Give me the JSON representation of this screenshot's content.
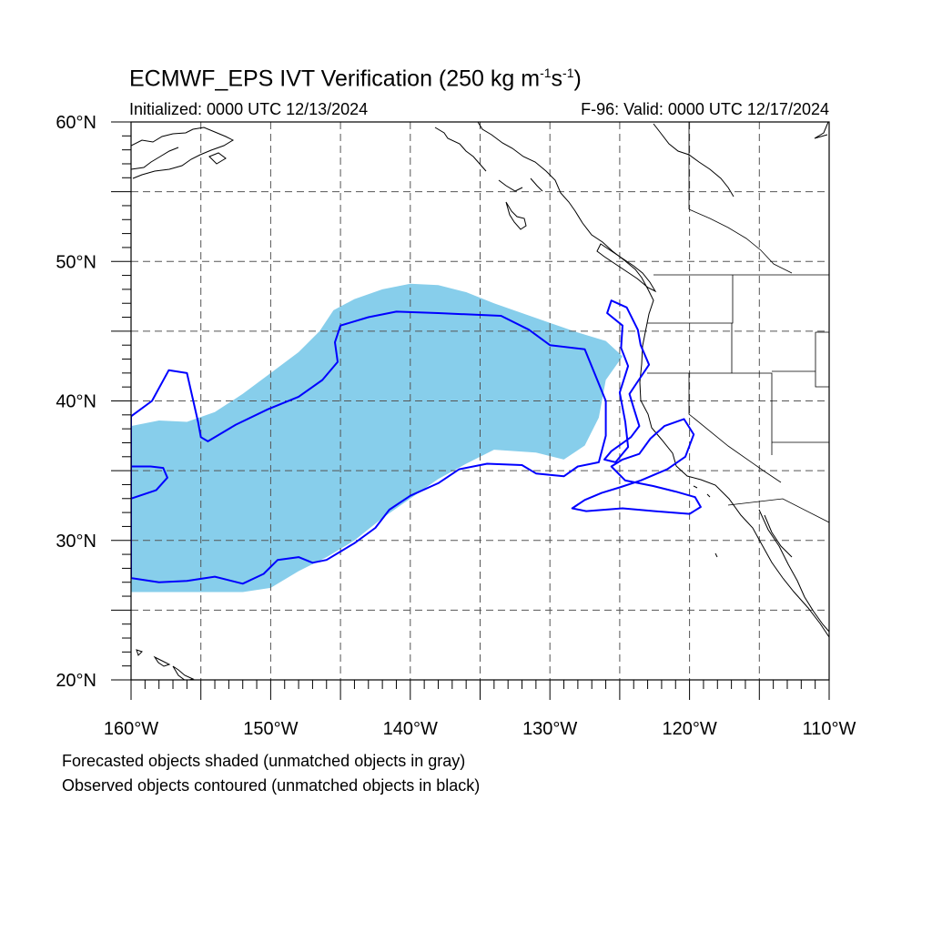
{
  "title_main": "ECMWF_EPS IVT Verification (250 kg m",
  "title_exp1": "-1",
  "title_mid": "s",
  "title_exp2": "-1",
  "title_end": ")",
  "subtitle_left": "Initialized: 0000 UTC 12/13/2024",
  "subtitle_right": "F-96: Valid: 0000 UTC 12/17/2024",
  "caption_lines": [
    "Forecasted objects shaded (unmatched objects in gray)",
    "Observed objects contoured (unmatched objects in black)"
  ],
  "y_ticks": [
    {
      "lat": 60,
      "label": "60°N"
    },
    {
      "lat": 50,
      "label": "50°N"
    },
    {
      "lat": 40,
      "label": "40°N"
    },
    {
      "lat": 30,
      "label": "30°N"
    },
    {
      "lat": 20,
      "label": "20°N"
    }
  ],
  "x_ticks": [
    {
      "lon": -160,
      "label": "160°W"
    },
    {
      "lon": -150,
      "label": "150°W"
    },
    {
      "lon": -140,
      "label": "140°W"
    },
    {
      "lon": -130,
      "label": "130°W"
    },
    {
      "lon": -120,
      "label": "120°W"
    },
    {
      "lon": -110,
      "label": "110°W"
    }
  ],
  "map": {
    "lon_range": [
      -160,
      -110
    ],
    "lat_range": [
      20,
      60
    ],
    "gridline_every_deg": 5,
    "colors": {
      "forecast_fill": "#87ceeb",
      "observed_contour": "#0000ff",
      "coastline": "#000000",
      "gridline": "#555555"
    },
    "forecast_object": {
      "polygon": [
        [
          -160,
          26.3
        ],
        [
          -152,
          26.3
        ],
        [
          -150,
          26.6
        ],
        [
          -148,
          27.8
        ],
        [
          -146,
          28.8
        ],
        [
          -144,
          30
        ],
        [
          -142,
          31.6
        ],
        [
          -140,
          33
        ],
        [
          -138,
          34.4
        ],
        [
          -136,
          35.5
        ],
        [
          -134,
          36.5
        ],
        [
          -131,
          36.3
        ],
        [
          -129,
          35.8
        ],
        [
          -127.5,
          36.8
        ],
        [
          -126.5,
          38.8
        ],
        [
          -126,
          41.5
        ],
        [
          -124.8,
          43.2
        ],
        [
          -126,
          44.3
        ],
        [
          -128,
          44.9
        ],
        [
          -130,
          45.6
        ],
        [
          -132,
          46.3
        ],
        [
          -134,
          47
        ],
        [
          -136,
          47.8
        ],
        [
          -138,
          48.3
        ],
        [
          -140,
          48.4
        ],
        [
          -142,
          48
        ],
        [
          -144,
          47.3
        ],
        [
          -145.5,
          46.5
        ],
        [
          -146.5,
          45
        ],
        [
          -148,
          43.5
        ],
        [
          -150,
          42
        ],
        [
          -152,
          40.5
        ],
        [
          -154,
          39.2
        ],
        [
          -156,
          38.5
        ],
        [
          -158,
          38.6
        ],
        [
          -160,
          38.2
        ]
      ]
    },
    "observed_objects": [
      {
        "name": "main",
        "polygon": [
          [
            -160,
            27.3
          ],
          [
            -158,
            27
          ],
          [
            -156,
            27.1
          ],
          [
            -154,
            27.4
          ],
          [
            -152,
            26.9
          ],
          [
            -150.5,
            27.6
          ],
          [
            -149.5,
            28.6
          ],
          [
            -148,
            28.8
          ],
          [
            -147,
            28.4
          ],
          [
            -146,
            28.6
          ],
          [
            -145,
            29.2
          ],
          [
            -144,
            29.8
          ],
          [
            -142.5,
            30.9
          ],
          [
            -141.5,
            32.2
          ],
          [
            -140,
            33.2
          ],
          [
            -138,
            34.1
          ],
          [
            -136.5,
            35.1
          ],
          [
            -134.5,
            35.5
          ],
          [
            -132,
            35.4
          ],
          [
            -131,
            34.8
          ],
          [
            -129,
            34.6
          ],
          [
            -128,
            35.3
          ],
          [
            -126.5,
            35.6
          ],
          [
            -126,
            37.5
          ],
          [
            -126,
            40
          ],
          [
            -127.5,
            43.7
          ],
          [
            -130,
            44
          ],
          [
            -131.5,
            45.1
          ],
          [
            -133.5,
            46.1
          ],
          [
            -138,
            46.3
          ],
          [
            -141,
            46.4
          ],
          [
            -143,
            46
          ],
          [
            -145,
            45.4
          ],
          [
            -145.4,
            44.2
          ],
          [
            -145.2,
            42.8
          ],
          [
            -146.3,
            41.5
          ],
          [
            -148,
            40.3
          ],
          [
            -150.2,
            39.4
          ],
          [
            -152.5,
            38.3
          ],
          [
            -154.5,
            37.1
          ],
          [
            -155,
            37.4
          ],
          [
            -155.2,
            38.5
          ],
          [
            -156,
            42
          ],
          [
            -157.3,
            42.2
          ],
          [
            -158.5,
            40
          ],
          [
            -160,
            38.9
          ]
        ]
      },
      {
        "name": "west-notch",
        "polygon": [
          [
            -160,
            33
          ],
          [
            -158.2,
            33.6
          ],
          [
            -157.4,
            34.5
          ],
          [
            -157.7,
            35.2
          ],
          [
            -158.6,
            35.3
          ],
          [
            -160,
            35.3
          ]
        ]
      },
      {
        "name": "coast-north",
        "polygon": [
          [
            -125.6,
            47.2
          ],
          [
            -124.5,
            46.7
          ],
          [
            -123.7,
            45.1
          ],
          [
            -123.5,
            44
          ],
          [
            -122.9,
            42.6
          ],
          [
            -123.7,
            41.4
          ],
          [
            -124.3,
            40.5
          ],
          [
            -124,
            39.5
          ],
          [
            -123.6,
            38.2
          ],
          [
            -124.2,
            37.4
          ],
          [
            -125.6,
            36.4
          ],
          [
            -126.1,
            35.8
          ],
          [
            -125.3,
            35.6
          ],
          [
            -124.4,
            36.7
          ],
          [
            -124.6,
            38.5
          ],
          [
            -125,
            40.6
          ],
          [
            -124.4,
            42.5
          ],
          [
            -124.9,
            43.8
          ],
          [
            -124.8,
            45.4
          ],
          [
            -125.9,
            46.3
          ]
        ]
      },
      {
        "name": "coast-south",
        "polygon": [
          [
            -128.4,
            32.3
          ],
          [
            -127.5,
            32.9
          ],
          [
            -126.3,
            33.4
          ],
          [
            -125,
            33.8
          ],
          [
            -123.5,
            34.3
          ],
          [
            -121.6,
            35.1
          ],
          [
            -120.3,
            36
          ],
          [
            -119.7,
            37.6
          ],
          [
            -120.4,
            38.7
          ],
          [
            -121.8,
            38.2
          ],
          [
            -122.8,
            37.3
          ],
          [
            -123.6,
            36.2
          ],
          [
            -124.8,
            35.8
          ],
          [
            -125.6,
            35.3
          ],
          [
            -124.6,
            34.3
          ],
          [
            -122.6,
            33.9
          ],
          [
            -121,
            33.5
          ],
          [
            -119.6,
            33.1
          ],
          [
            -119.2,
            32.4
          ],
          [
            -120,
            31.9
          ],
          [
            -122.5,
            32.1
          ],
          [
            -124.8,
            32.3
          ],
          [
            -127.4,
            32.1
          ]
        ]
      }
    ]
  }
}
